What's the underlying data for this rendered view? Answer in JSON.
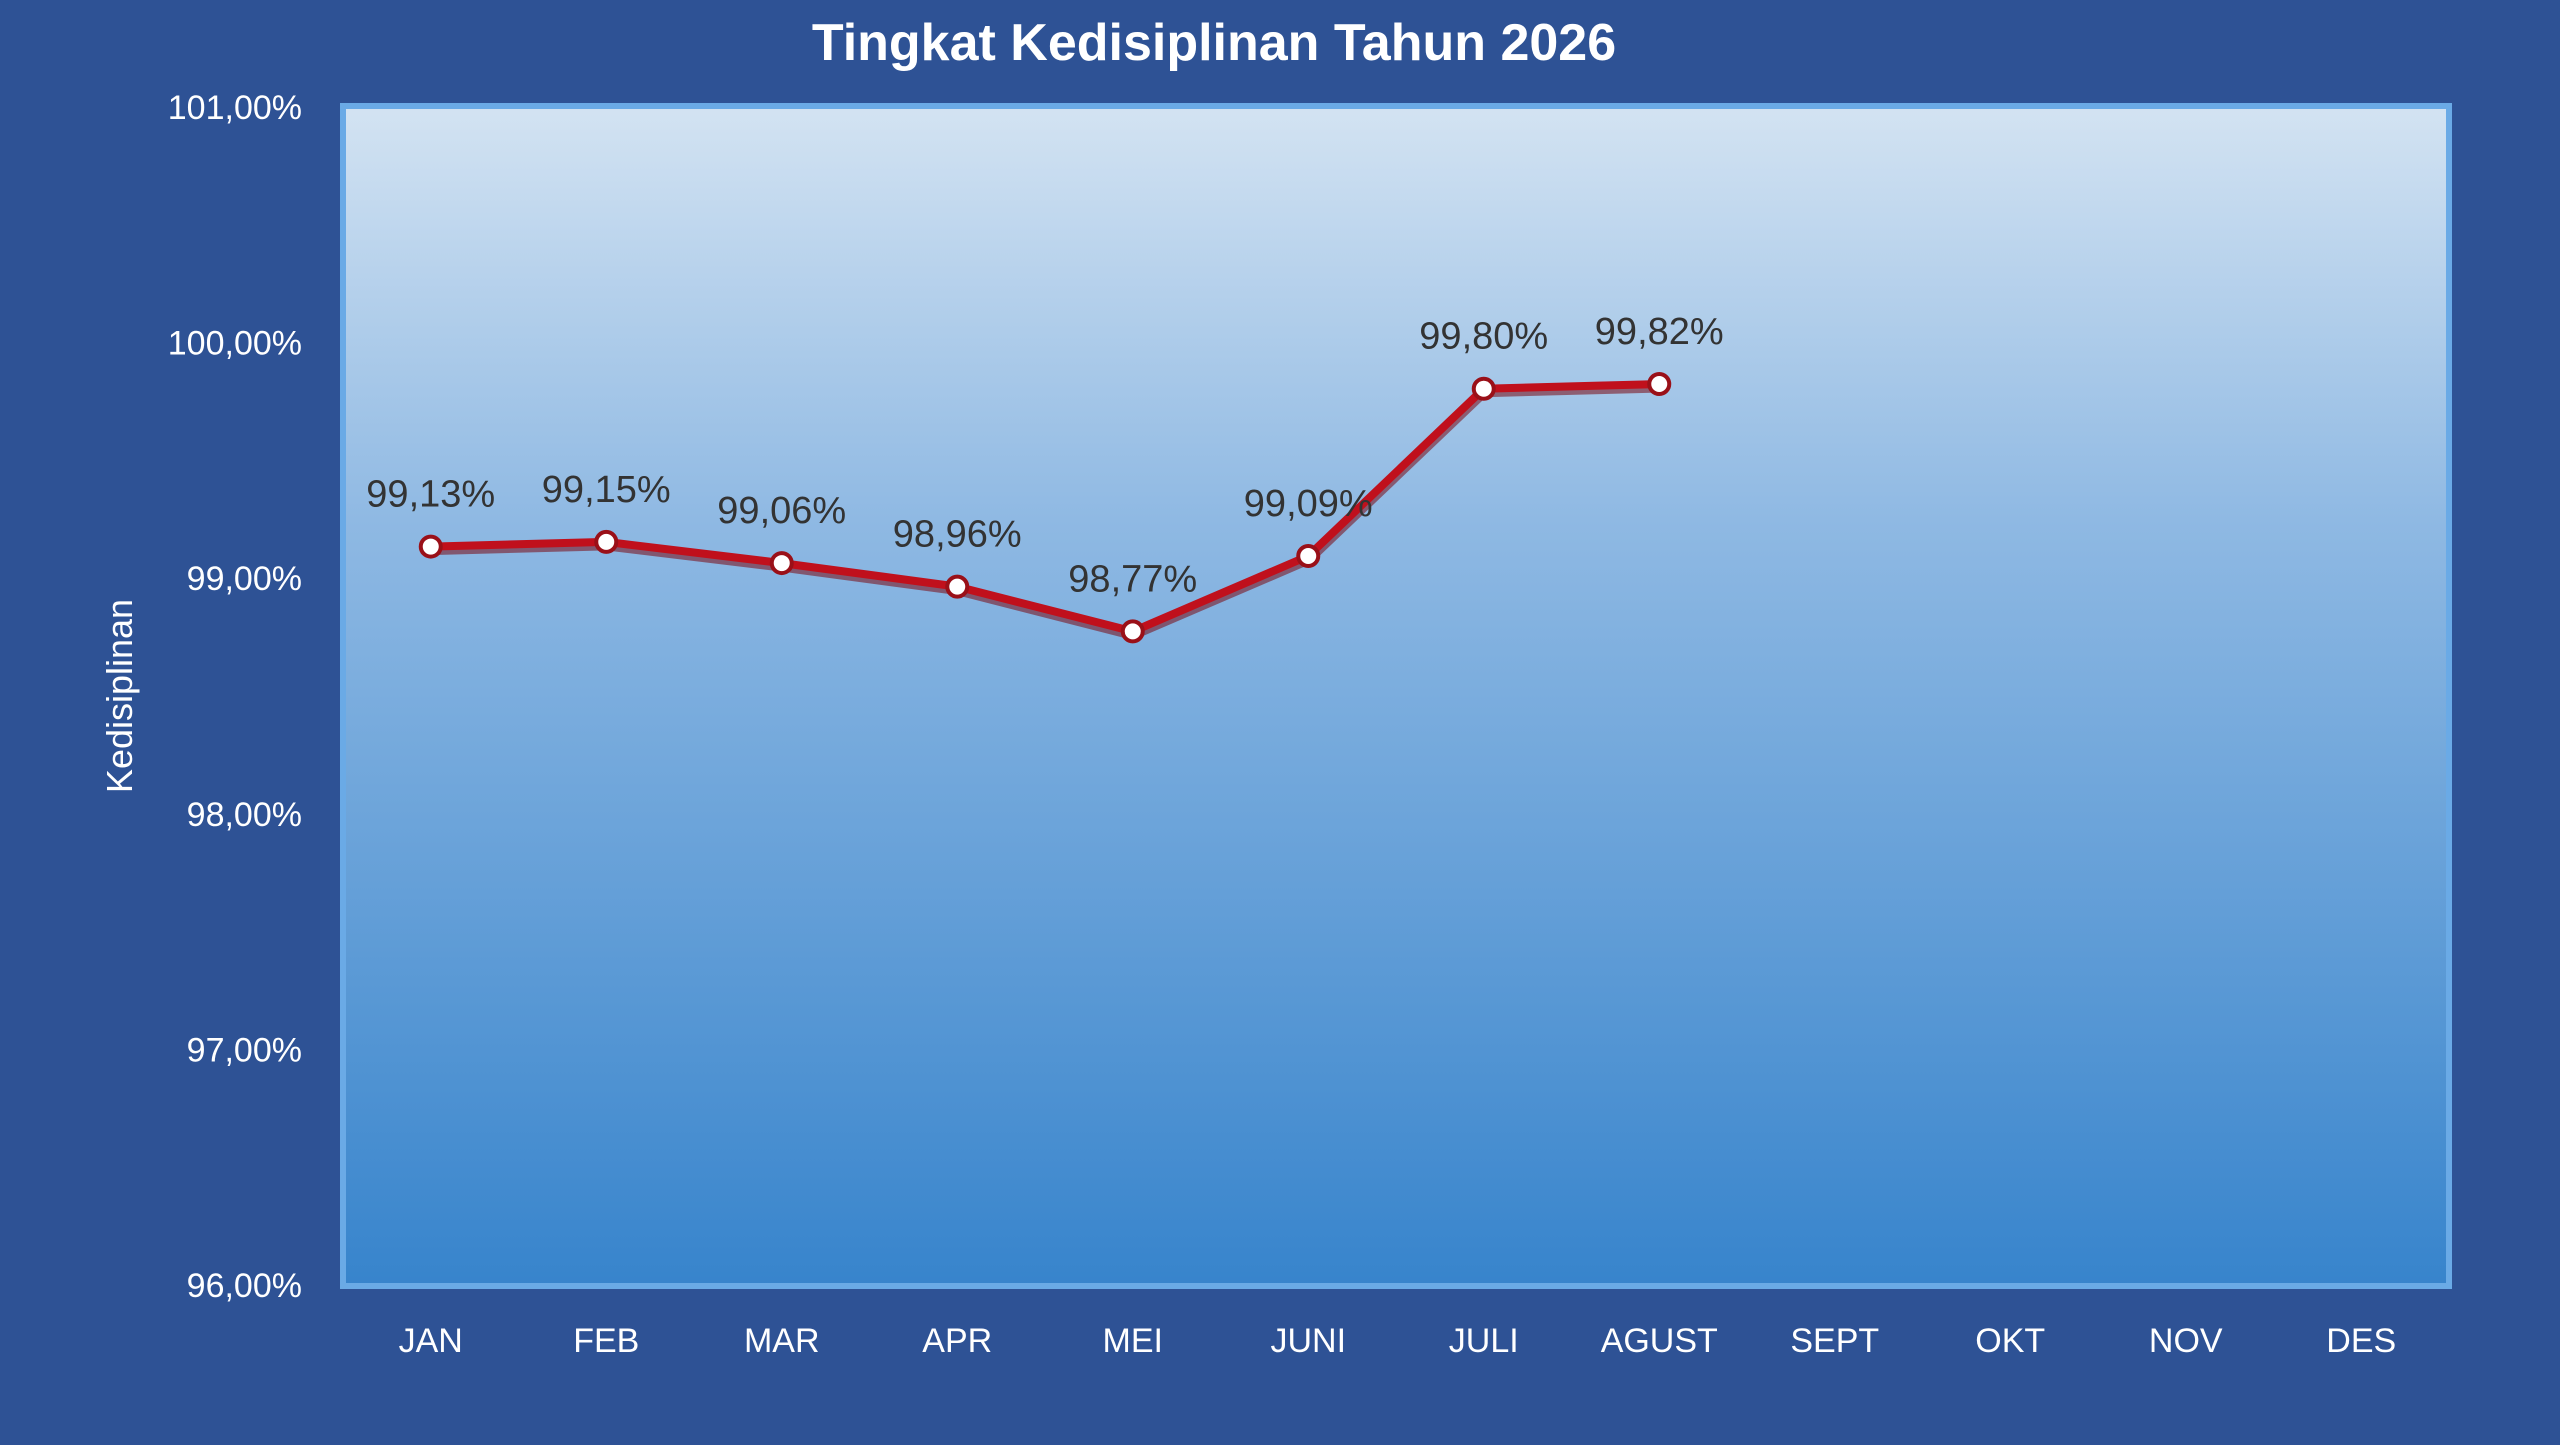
{
  "chart_data": {
    "type": "line",
    "title": "Tingkat Kedisiplinan Tahun 2026",
    "xlabel": "",
    "ylabel": "Kedisiplinan",
    "categories": [
      "JAN",
      "FEB",
      "MAR",
      "APR",
      "MEI",
      "JUNI",
      "JULI",
      "AGUST",
      "SEPT",
      "OKT",
      "NOV",
      "DES"
    ],
    "series": [
      {
        "values": [
          99.13,
          99.15,
          99.06,
          98.96,
          98.77,
          99.09,
          99.8,
          99.82,
          null,
          null,
          null,
          null
        ],
        "value_labels": [
          "99,13%",
          "99,15%",
          "99,06%",
          "98,96%",
          "98,77%",
          "99,09%",
          "99,80%",
          "99,82%",
          "",
          "",
          "",
          ""
        ]
      }
    ],
    "ylim": [
      96,
      101
    ],
    "yticks": [
      96,
      97,
      98,
      99,
      100,
      101
    ],
    "ytick_labels": [
      "96,00%",
      "97,00%",
      "98,00%",
      "99,00%",
      "100,00%",
      "101,00%"
    ],
    "grid": false,
    "legend": "none",
    "colors": {
      "background": "#2e5295",
      "plot_gradient_top": "#d3e3f2",
      "plot_gradient_bottom": "#3784cc",
      "plot_border": "#6aaae6",
      "line": "#c0101c",
      "marker_fill": "#ffffff",
      "label_text": "#333333",
      "axis_text": "#ffffff"
    }
  }
}
